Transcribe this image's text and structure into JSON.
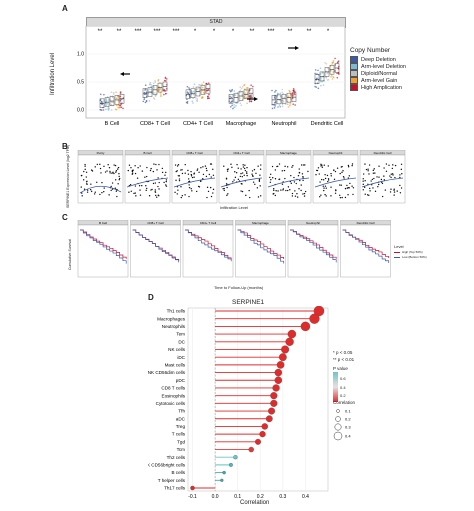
{
  "panel_labels": {
    "a": "A",
    "b": "B",
    "c": "C",
    "d": "D"
  },
  "panel_a": {
    "strip_title": "STAD",
    "ylabel": "Infiltration Level",
    "y_ticks": [
      "0.0",
      "0.5",
      "1.0"
    ],
    "categories": [
      "B Cell",
      "CD8+ T Cell",
      "CD4+ T Cell",
      "Macrophage",
      "Neutrophil",
      "Dendritic Cell"
    ],
    "significance": [
      "**",
      "**",
      "***",
      "***",
      "***",
      "*",
      "*",
      "*",
      "**",
      "***",
      "**",
      "**",
      "*"
    ],
    "legend": {
      "title": "Copy Number",
      "items": [
        {
          "label": "Deep Deletion",
          "color": "#3b5ba9"
        },
        {
          "label": "Arm-level Deletion",
          "color": "#7fb8d4"
        },
        {
          "label": "Diploid/Normal",
          "color": "#bdbdbd"
        },
        {
          "label": "Arm-level Gain",
          "color": "#f0a030"
        },
        {
          "label": "High Amplication",
          "color": "#c8102e"
        }
      ]
    }
  },
  "panel_b": {
    "ylabel": "SERPINE1 Expression Level (log2 TPM)",
    "xlabel": "Infiltration Level",
    "panels": [
      "Purity",
      "B Cell",
      "CD8+ T Cell",
      "CD4+ T Cell",
      "Macrophage",
      "Neutrophil",
      "Dendritic Cell"
    ]
  },
  "panel_c": {
    "ylabel": "Cumulative Survival",
    "xlabel": "Time to Follow-Up (months)",
    "panels": [
      "B Cell",
      "CD8+ T Cell",
      "CD4+ T Cell",
      "Macrophage",
      "Neutrophil",
      "Dendritic Cell"
    ],
    "legend_title": "Level",
    "legend_items": [
      {
        "label": "High (Top 50%)",
        "color": "#c8102e"
      },
      {
        "label": "Low (Bottom 50%)",
        "color": "#3b5ba9"
      }
    ]
  },
  "panel_d": {
    "chart_data": {
      "type": "lollipop",
      "title": "SERPINE1",
      "xlabel": "Correlation",
      "xlim": [
        -0.12,
        0.5
      ],
      "x_ticks": [
        -0.1,
        0.0,
        0.1,
        0.2,
        0.3,
        0.4
      ],
      "categories": [
        "Th1 cells",
        "Macrophages",
        "Neutrophils",
        "Tem",
        "DC",
        "NK cells",
        "iDC",
        "Mast cells",
        "NK CD56dim cells",
        "pDC",
        "CD8 T cells",
        "Eosinophils",
        "Cytotoxic cells",
        "Tfh",
        "aDC",
        "Treg",
        "T cells",
        "Tgd",
        "Tcm",
        "Th2 cells",
        "NK CD56bright cells",
        "B cells",
        "T helper cells",
        "Th17 cells"
      ],
      "values": [
        0.46,
        0.44,
        0.4,
        0.34,
        0.33,
        0.31,
        0.3,
        0.29,
        0.28,
        0.28,
        0.27,
        0.26,
        0.26,
        0.25,
        0.24,
        0.22,
        0.21,
        0.19,
        0.16,
        0.09,
        0.07,
        0.04,
        0.03,
        -0.1
      ],
      "pvalue_colors": [
        "#e02b2b",
        "#e02b2b",
        "#e02b2b",
        "#e02b2b",
        "#e02b2b",
        "#e02b2b",
        "#e02b2b",
        "#e02b2b",
        "#e02b2b",
        "#e02b2b",
        "#e02b2b",
        "#e02b2b",
        "#e02b2b",
        "#e02b2b",
        "#e02b2b",
        "#e02b2b",
        "#e02b2b",
        "#e02b2b",
        "#e23a3a",
        "#6fc4c8",
        "#4bb8c2",
        "#43a8b6",
        "#43a8b6",
        "#e02b2b"
      ],
      "star_note": "* p < 0.05",
      "star_note2": "** p < 0.01",
      "pvalue_title": "P value",
      "pvalue_ticks": [
        "0.6",
        "0.4",
        "0.2"
      ],
      "size_title": "Correlation",
      "size_ticks": [
        "0.1",
        "0.2",
        "0.3",
        "0.4"
      ]
    }
  }
}
